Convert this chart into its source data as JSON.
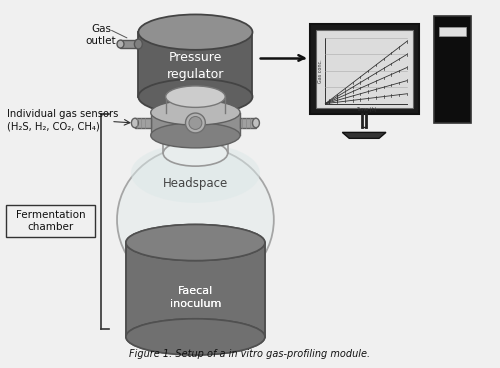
{
  "title": "Figure 1. Setup of a in vitro gas-profiling module.",
  "bg_color": "#f5f5f5",
  "labels": {
    "gas_outlet": "Gas\noutlet",
    "pressure_regulator": "Pressure\nregulator",
    "individual_sensors": "Individual gas sensors\n(H₂S, H₂, CO₂, CH₄)",
    "headspace": "Headspace",
    "fermentation_chamber": "Fermentation\nchamber",
    "faecal_inoculum": "Faecal\ninoculum"
  },
  "colors": {
    "dark_gray": "#606060",
    "mid_gray": "#909090",
    "light_gray": "#c0c0c0",
    "lighter_gray": "#e0e0e0",
    "bg": "#f0f0f0",
    "glass_fill": "#e8eded",
    "glass_edge": "#999999",
    "faecal_top": "#808080",
    "faecal_body": "#707070",
    "black": "#111111",
    "white": "#ffffff",
    "monitor_bg": "#111111",
    "monitor_chart_bg": "#e0e0e0",
    "arrow_color": "#222222",
    "connector_gray": "#a0a0a0"
  }
}
